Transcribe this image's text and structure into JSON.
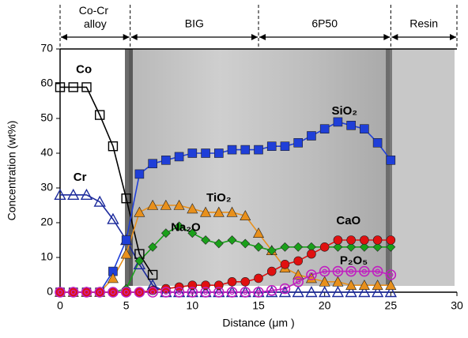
{
  "chart_data": {
    "type": "line",
    "x_label": "Distance (μm )",
    "y_label": "Concentration (wt%)",
    "x": [
      0,
      1,
      2,
      3,
      4,
      5,
      6,
      7,
      8,
      9,
      10,
      11,
      12,
      13,
      14,
      15,
      16,
      17,
      18,
      19,
      20,
      21,
      22,
      23,
      24,
      25
    ],
    "series": [
      {
        "name": "Co",
        "color": "#000000",
        "marker": "square-open",
        "values": [
          59,
          59,
          59,
          51,
          42,
          27,
          11,
          5,
          null,
          null,
          null,
          null,
          null,
          null,
          null,
          null,
          null,
          null,
          null,
          null,
          null,
          null,
          null,
          null,
          null,
          null
        ]
      },
      {
        "name": "Cr",
        "color": "#1c2a9c",
        "marker": "triangle-open",
        "values": [
          28,
          28,
          28,
          26,
          21,
          15,
          8,
          2,
          0,
          0,
          0,
          0,
          0,
          0,
          0,
          0,
          0,
          0,
          0,
          0,
          0,
          0,
          0,
          0,
          0,
          0
        ]
      },
      {
        "name": "SiO₂",
        "color": "#1f3fd8",
        "marker": "square",
        "values": [
          0,
          0,
          0,
          0,
          6,
          15,
          34,
          37,
          38,
          39,
          40,
          40,
          40,
          41,
          41,
          41,
          42,
          42,
          43,
          45,
          47,
          49,
          48,
          47,
          43,
          38
        ]
      },
      {
        "name": "TiO₂",
        "color": "#e8901c",
        "marker": "triangle",
        "values": [
          0,
          0,
          0,
          0,
          4,
          11,
          23,
          25,
          25,
          25,
          24,
          23,
          23,
          23,
          22,
          17,
          12,
          7,
          5,
          4,
          3,
          3,
          2,
          2,
          2,
          2
        ]
      },
      {
        "name": "Na₂O",
        "color": "#1aa01a",
        "marker": "diamond",
        "values": [
          0,
          0,
          0,
          0,
          0,
          1,
          9,
          13,
          17,
          19,
          17,
          15,
          14,
          15,
          14,
          13,
          12,
          13,
          13,
          13,
          13,
          13,
          13,
          13,
          13,
          13
        ]
      },
      {
        "name": "CaO",
        "color": "#e01010",
        "marker": "circle",
        "values": [
          0,
          0,
          0,
          0,
          0,
          0,
          0,
          0.5,
          1,
          1.5,
          2,
          2,
          2,
          3,
          3,
          4,
          6,
          8,
          9,
          11,
          13,
          15,
          15,
          15,
          15,
          15
        ]
      },
      {
        "name": "P₂O₅",
        "color": "#c020c0",
        "marker": "double-circle",
        "values": [
          0,
          0,
          0,
          0,
          0,
          0,
          0,
          0,
          0,
          0,
          0,
          0,
          0,
          0,
          0,
          0,
          0.5,
          1,
          3,
          5,
          6,
          6,
          6,
          6,
          6,
          5
        ]
      }
    ],
    "label_positions": [
      [
        1.8,
        64
      ],
      [
        1.5,
        33
      ],
      [
        21.5,
        52
      ],
      [
        12,
        27
      ],
      [
        9.5,
        18.5
      ],
      [
        21.8,
        20.5
      ],
      [
        22.2,
        9
      ]
    ],
    "regions": [
      {
        "label": "Co-Cr alloy",
        "range": [
          0,
          5.3
        ]
      },
      {
        "label": "BIG",
        "range": [
          5.3,
          15
        ]
      },
      {
        "label": "6P50",
        "range": [
          15,
          25
        ]
      },
      {
        "label": "Resin",
        "range": [
          25,
          30
        ]
      }
    ],
    "xlim": [
      0,
      30
    ],
    "xticks": [
      0,
      5,
      10,
      15,
      20,
      25,
      30
    ],
    "ylim": [
      0,
      70
    ],
    "yticks": [
      0,
      10,
      20,
      30,
      40,
      50,
      60,
      70
    ]
  }
}
